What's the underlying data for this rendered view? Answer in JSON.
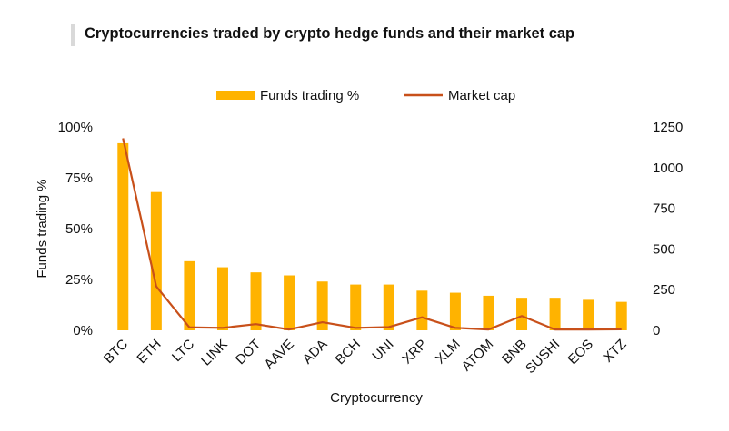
{
  "title": "Cryptocurrencies traded by crypto hedge funds and their market cap",
  "chart_data": {
    "type": "bar",
    "categories": [
      "BTC",
      "ETH",
      "LTC",
      "LINK",
      "DOT",
      "AAVE",
      "ADA",
      "BCH",
      "UNI",
      "XRP",
      "XLM",
      "ATOM",
      "BNB",
      "SUSHI",
      "EOS",
      "XTZ"
    ],
    "xlabel": "Cryptocurrency",
    "ylabel": "Funds trading %",
    "ylim": [
      0,
      100
    ],
    "y_ticks": [
      "0%",
      "25%",
      "50%",
      "75%",
      "100%"
    ],
    "y2lim": [
      0,
      1250
    ],
    "y2_ticks": [
      "0",
      "250",
      "500",
      "750",
      "1000",
      "1250"
    ],
    "grid": false,
    "legend_position": "top-center",
    "series": [
      {
        "name": "Funds trading %",
        "type": "bar",
        "axis": "left",
        "color": "#ffb300",
        "values": [
          92,
          68,
          34,
          31,
          28.5,
          27,
          24,
          22.5,
          22.5,
          19.5,
          18.5,
          17,
          16,
          16,
          15,
          14
        ]
      },
      {
        "name": "Market cap",
        "type": "line",
        "axis": "right",
        "color": "#c8501a",
        "values": [
          1180,
          270,
          18,
          15,
          38,
          5,
          50,
          15,
          20,
          80,
          15,
          5,
          88,
          5,
          5,
          6
        ]
      }
    ]
  }
}
